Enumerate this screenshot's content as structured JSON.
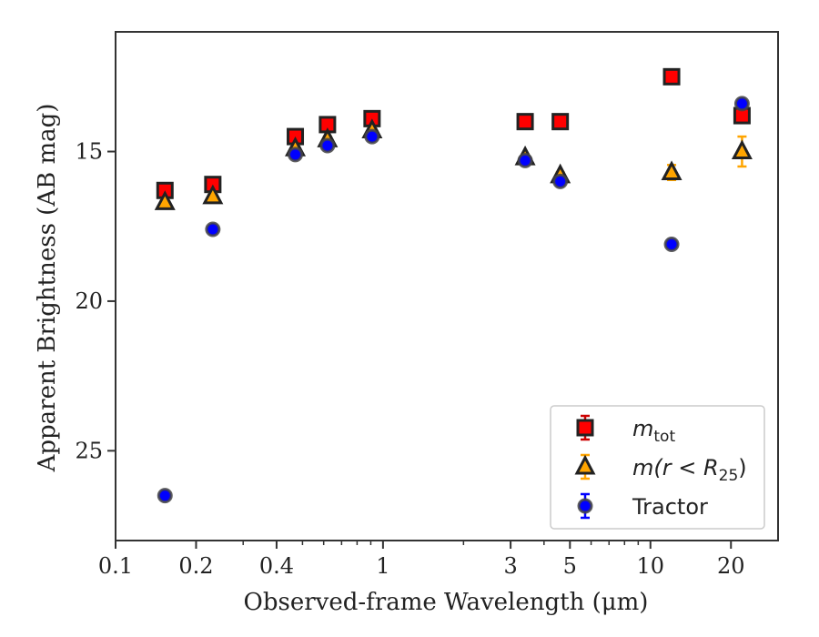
{
  "chart_data": {
    "type": "scatter",
    "xlabel": "Observed-frame Wavelength (μm)",
    "ylabel": "Apparent Brightness (AB mag)",
    "x_scale": "log",
    "xlim": [
      0.1,
      30
    ],
    "ylim": [
      28,
      11
    ],
    "y_inverted": true,
    "x_ticks": [
      0.1,
      0.2,
      0.4,
      1,
      3,
      5,
      10,
      20
    ],
    "x_tick_labels": [
      "0.1",
      "0.2",
      "0.4",
      "1",
      "3",
      "5",
      "10",
      "20"
    ],
    "y_ticks": [
      15,
      20,
      25
    ],
    "y_tick_labels": [
      "15",
      "20",
      "25"
    ],
    "grid": false,
    "legend_position": "lower-right",
    "series": [
      {
        "name": "m_tot",
        "legend_label": "m",
        "legend_sub": "tot",
        "marker": "square",
        "color": "#ff0000",
        "edge_color": "#222222",
        "errorbar_color": "#cc0000",
        "points": [
          {
            "x": 0.153,
            "y": 16.3,
            "err": 0.1
          },
          {
            "x": 0.231,
            "y": 16.1,
            "err": 0.1
          },
          {
            "x": 0.47,
            "y": 14.5,
            "err": 0.1
          },
          {
            "x": 0.62,
            "y": 14.1,
            "err": 0.1
          },
          {
            "x": 0.91,
            "y": 13.9,
            "err": 0.1
          },
          {
            "x": 3.4,
            "y": 14.0,
            "err": 0.1
          },
          {
            "x": 4.6,
            "y": 14.0,
            "err": 0.1
          },
          {
            "x": 12.0,
            "y": 12.5,
            "err": 0.1
          },
          {
            "x": 22.0,
            "y": 13.8,
            "err": 0.1
          }
        ]
      },
      {
        "name": "m(r < R_25)",
        "legend_label": "m(r < R",
        "legend_sub": "25",
        "legend_suffix": ")",
        "marker": "triangle",
        "color": "#ffa500",
        "edge_color": "#222222",
        "errorbar_color": "#ffa500",
        "points": [
          {
            "x": 0.153,
            "y": 16.7,
            "err": 0.1
          },
          {
            "x": 0.231,
            "y": 16.5,
            "err": 0.1
          },
          {
            "x": 0.47,
            "y": 14.9,
            "err": 0.1
          },
          {
            "x": 0.62,
            "y": 14.6,
            "err": 0.1
          },
          {
            "x": 0.91,
            "y": 14.3,
            "err": 0.1
          },
          {
            "x": 3.4,
            "y": 15.2,
            "err": 0.1
          },
          {
            "x": 4.6,
            "y": 15.8,
            "err": 0.1
          },
          {
            "x": 12.0,
            "y": 15.7,
            "err": 0.25
          },
          {
            "x": 22.0,
            "y": 15.0,
            "err": 0.5
          }
        ]
      },
      {
        "name": "Tractor",
        "legend_label": "Tractor",
        "marker": "circle",
        "color": "#0000ff",
        "edge_color": "#444444",
        "errorbar_color": "#0000ff",
        "points": [
          {
            "x": 0.153,
            "y": 26.5,
            "err": 0.1
          },
          {
            "x": 0.231,
            "y": 17.6,
            "err": 0.1
          },
          {
            "x": 0.47,
            "y": 15.1,
            "err": 0.1
          },
          {
            "x": 0.62,
            "y": 14.8,
            "err": 0.1
          },
          {
            "x": 0.91,
            "y": 14.5,
            "err": 0.1
          },
          {
            "x": 3.4,
            "y": 15.3,
            "err": 0.1
          },
          {
            "x": 4.6,
            "y": 16.0,
            "err": 0.1
          },
          {
            "x": 12.0,
            "y": 18.1,
            "err": 0.1
          },
          {
            "x": 22.0,
            "y": 13.4,
            "err": 0.1
          }
        ]
      }
    ]
  }
}
